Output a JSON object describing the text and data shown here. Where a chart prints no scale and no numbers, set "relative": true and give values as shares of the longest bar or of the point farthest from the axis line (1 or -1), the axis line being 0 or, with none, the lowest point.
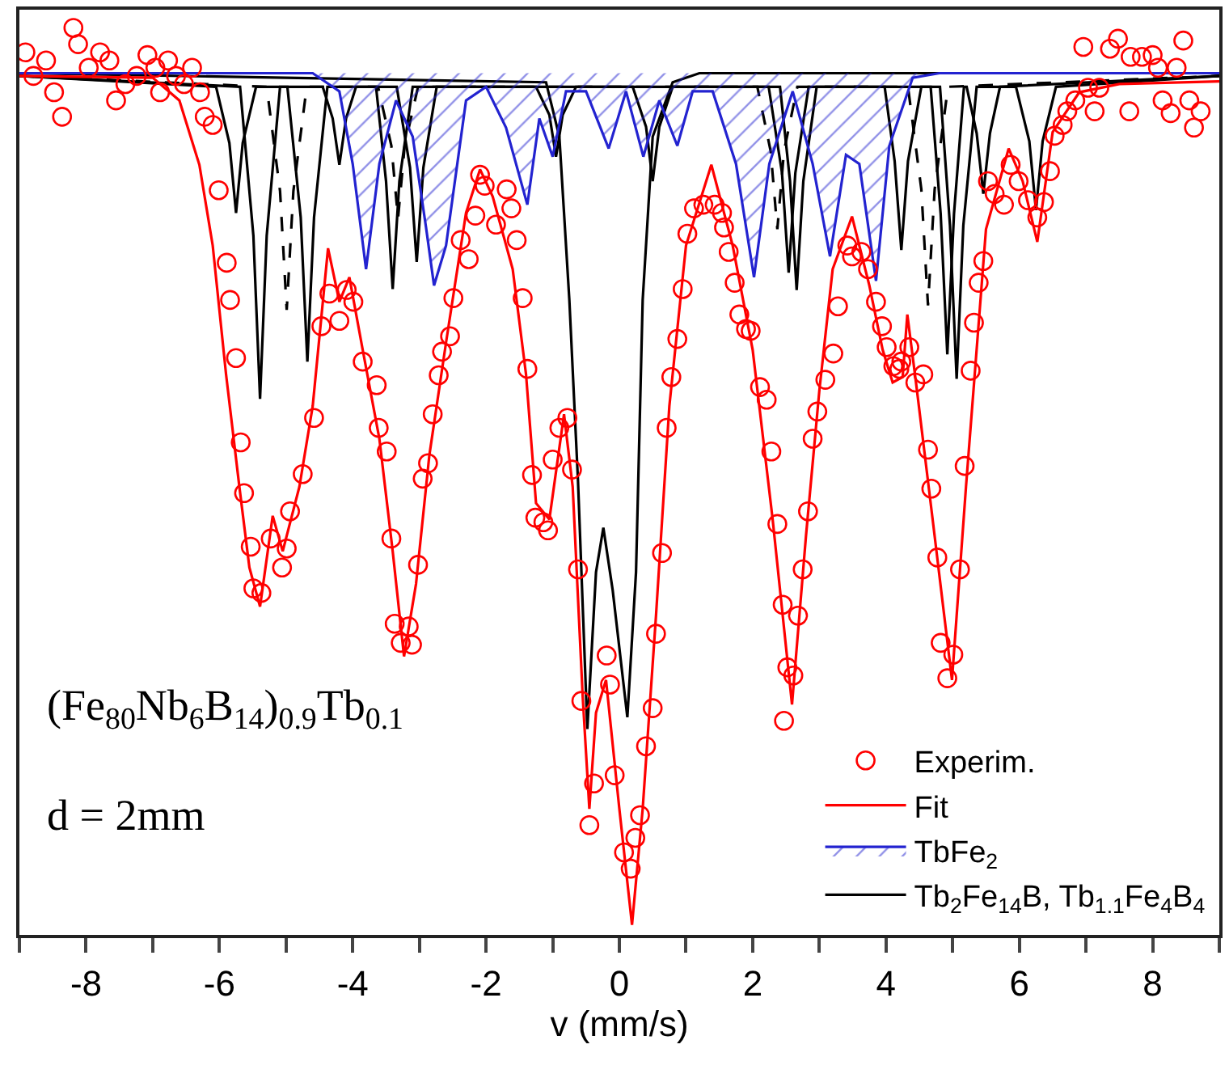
{
  "chart_data": {
    "type": "scatter",
    "relative": true,
    "xlabel": "v (mm/s)",
    "xlim": [
      -9,
      9
    ],
    "xticks": [
      {
        "value": -9,
        "label": null
      },
      -8,
      {
        "value": -7,
        "label": null
      },
      -6,
      {
        "value": -5,
        "label": null
      },
      -4,
      {
        "value": -3,
        "label": null
      },
      -2,
      {
        "value": -1,
        "label": null
      },
      0,
      {
        "value": 1,
        "label": null
      },
      2,
      {
        "value": 3,
        "label": null
      },
      4,
      {
        "value": 5,
        "label": null
      },
      6,
      {
        "value": 7,
        "label": null
      },
      8,
      {
        "value": 9,
        "label": null
      }
    ],
    "tick_labels": "x",
    "legend": "bottom right",
    "annotations": [
      "(Fe$_{80}$Nb$_{6}$B$_{14}$)$_{0.9}$Tb$_{0.1}$",
      "d = 2mm"
    ],
    "series": [
      {
        "name": "Experim.",
        "marker": "circle",
        "color": "#ff0000",
        "x": [
          -8.91,
          -8.79,
          -8.6,
          -8.48,
          -8.36,
          -8.19,
          -8.12,
          -7.96,
          -7.79,
          -7.65,
          -7.55,
          -7.41,
          -7.24,
          -7.08,
          -6.96,
          -6.89,
          -6.77,
          -6.65,
          -6.53,
          -6.41,
          -6.29,
          -6.22,
          -6.1,
          -6.01,
          -5.89,
          -5.84,
          -5.75,
          -5.68,
          -5.63,
          -5.53,
          -5.49,
          -5.37,
          -5.23,
          -5.06,
          -4.99,
          -4.94,
          -4.75,
          -4.58,
          -4.47,
          -4.35,
          -4.2,
          -4.09,
          -3.99,
          -3.85,
          -3.64,
          -3.61,
          -3.49,
          -3.42,
          -3.37,
          -3.28,
          -3.16,
          -3.11,
          -3.02,
          -2.95,
          -2.87,
          -2.8,
          -2.71,
          -2.66,
          -2.54,
          -2.49,
          -2.38,
          -2.26,
          -2.16,
          -2.09,
          -2.02,
          -1.85,
          -1.69,
          -1.62,
          -1.54,
          -1.45,
          -1.38,
          -1.31,
          -1.26,
          -1.14,
          -1.07,
          -1.0,
          -0.9,
          -0.78,
          -0.71,
          -0.62,
          -0.57,
          -0.45,
          -0.38,
          -0.19,
          -0.14,
          -0.07,
          0.07,
          0.17,
          0.24,
          0.31,
          0.4,
          0.5,
          0.55,
          0.64,
          0.71,
          0.78,
          0.87,
          0.95,
          1.02,
          1.12,
          1.26,
          1.43,
          1.54,
          1.57,
          1.64,
          1.73,
          1.8,
          1.9,
          1.97,
          2.11,
          2.21,
          2.28,
          2.37,
          2.45,
          2.47,
          2.52,
          2.61,
          2.68,
          2.75,
          2.83,
          2.9,
          2.97,
          3.09,
          3.21,
          3.28,
          3.42,
          3.49,
          3.63,
          3.73,
          3.85,
          3.94,
          4.01,
          4.11,
          4.2,
          4.23,
          4.35,
          4.44,
          4.56,
          4.63,
          4.68,
          4.77,
          4.82,
          4.92,
          5.01,
          5.11,
          5.18,
          5.27,
          5.32,
          5.39,
          5.46,
          5.53,
          5.63,
          5.77,
          5.87,
          5.99,
          6.13,
          6.27,
          6.37,
          6.46,
          6.53,
          6.65,
          6.72,
          6.84,
          6.96,
          7.03,
          7.13,
          7.2,
          7.36,
          7.48,
          7.65,
          7.67,
          7.84,
          8.0,
          8.08,
          8.15,
          8.27,
          8.36,
          8.46,
          8.55,
          8.62,
          8.72
        ],
        "values": [
          0.973,
          0.947,
          0.964,
          0.929,
          0.902,
          1.0,
          0.982,
          0.956,
          0.973,
          0.964,
          0.92,
          0.938,
          0.947,
          0.97,
          0.956,
          0.929,
          0.964,
          0.947,
          0.938,
          0.956,
          0.929,
          0.902,
          0.893,
          0.821,
          0.741,
          0.7,
          0.636,
          0.543,
          0.487,
          0.428,
          0.382,
          0.377,
          0.437,
          0.405,
          0.426,
          0.467,
          0.508,
          0.57,
          0.671,
          0.707,
          0.677,
          0.711,
          0.698,
          0.632,
          0.606,
          0.559,
          0.533,
          0.437,
          0.343,
          0.322,
          0.34,
          0.32,
          0.408,
          0.503,
          0.52,
          0.574,
          0.617,
          0.643,
          0.66,
          0.702,
          0.766,
          0.745,
          0.793,
          0.838,
          0.826,
          0.783,
          0.822,
          0.801,
          0.766,
          0.702,
          0.624,
          0.507,
          0.46,
          0.455,
          0.446,
          0.524,
          0.559,
          0.57,
          0.513,
          0.403,
          0.258,
          0.121,
          0.167,
          0.308,
          0.276,
          0.176,
          0.091,
          0.073,
          0.107,
          0.132,
          0.208,
          0.25,
          0.332,
          0.421,
          0.559,
          0.615,
          0.657,
          0.712,
          0.773,
          0.801,
          0.805,
          0.805,
          0.796,
          0.78,
          0.753,
          0.719,
          0.684,
          0.668,
          0.666,
          0.604,
          0.59,
          0.533,
          0.453,
          0.364,
          0.236,
          0.295,
          0.286,
          0.352,
          0.403,
          0.467,
          0.547,
          0.577,
          0.612,
          0.641,
          0.693,
          0.76,
          0.748,
          0.753,
          0.734,
          0.698,
          0.671,
          0.648,
          0.627,
          0.624,
          0.632,
          0.648,
          0.609,
          0.618,
          0.535,
          0.492,
          0.416,
          0.322,
          0.283,
          0.309,
          0.403,
          0.517,
          0.622,
          0.675,
          0.719,
          0.743,
          0.831,
          0.817,
          0.805,
          0.849,
          0.831,
          0.81,
          0.791,
          0.808,
          0.842,
          0.881,
          0.893,
          0.908,
          0.92,
          0.979,
          0.934,
          0.908,
          0.934,
          0.977,
          0.988,
          0.908,
          0.968,
          0.968,
          0.97,
          0.956,
          0.92,
          0.906,
          0.956,
          0.986,
          0.92,
          0.89,
          0.908
        ]
      },
      {
        "name": "Fit",
        "type": "line",
        "line_style": "solid",
        "color": "#ff0000",
        "x": [
          -9,
          -7.0,
          -6.6,
          -6.3,
          -6.1,
          -5.9,
          -5.7,
          -5.55,
          -5.39,
          -5.2,
          -5.05,
          -4.8,
          -4.6,
          -4.37,
          -4.2,
          -4.05,
          -3.85,
          -3.6,
          -3.4,
          -3.23,
          -3.05,
          -2.85,
          -2.6,
          -2.3,
          -2.09,
          -1.9,
          -1.6,
          -1.4,
          -1.25,
          -1.05,
          -0.83,
          -0.7,
          -0.55,
          -0.45,
          -0.35,
          -0.2,
          0.0,
          0.19,
          0.35,
          0.55,
          0.75,
          1.0,
          1.38,
          1.7,
          2.0,
          2.3,
          2.59,
          2.8,
          3.0,
          3.2,
          3.49,
          3.75,
          3.95,
          4.1,
          4.25,
          4.32,
          4.45,
          4.7,
          4.99,
          5.2,
          5.5,
          5.84,
          6.05,
          6.27,
          6.5,
          6.9,
          7.5,
          9.0
        ],
        "values": [
          0.947,
          0.945,
          0.92,
          0.849,
          0.76,
          0.618,
          0.494,
          0.405,
          0.362,
          0.462,
          0.423,
          0.494,
          0.583,
          0.757,
          0.698,
          0.725,
          0.645,
          0.547,
          0.423,
          0.307,
          0.387,
          0.529,
          0.653,
          0.796,
          0.844,
          0.814,
          0.734,
          0.618,
          0.476,
          0.458,
          0.574,
          0.494,
          0.263,
          0.139,
          0.245,
          0.281,
          0.139,
          0.011,
          0.139,
          0.352,
          0.583,
          0.76,
          0.849,
          0.76,
          0.645,
          0.458,
          0.254,
          0.44,
          0.6,
          0.734,
          0.792,
          0.716,
          0.645,
          0.609,
          0.615,
          0.684,
          0.609,
          0.458,
          0.281,
          0.494,
          0.778,
          0.867,
          0.831,
          0.764,
          0.885,
          0.929,
          0.938,
          0.941
        ]
      },
      {
        "name": "TbFe$_{2}$",
        "type": "area",
        "color": "#2323d0",
        "x": [
          -9,
          -4.6,
          -4.2,
          -4.0,
          -3.8,
          -3.6,
          -3.35,
          -3.1,
          -2.9,
          -2.78,
          -2.6,
          -2.3,
          -2.0,
          -1.7,
          -1.38,
          -1.2,
          -1.0,
          -0.8,
          -0.5,
          -0.16,
          0.1,
          0.36,
          0.6,
          0.87,
          1.1,
          1.4,
          1.75,
          2.02,
          2.25,
          2.6,
          2.9,
          3.16,
          3.4,
          3.6,
          3.85,
          4.05,
          4.4,
          4.8,
          9
        ],
        "values": [
          0.95,
          0.95,
          0.93,
          0.85,
          0.734,
          0.85,
          0.92,
          0.88,
          0.78,
          0.716,
          0.76,
          0.92,
          0.935,
          0.89,
          0.805,
          0.9,
          0.858,
          0.93,
          0.93,
          0.867,
          0.93,
          0.858,
          0.92,
          0.87,
          0.93,
          0.93,
          0.85,
          0.725,
          0.85,
          0.93,
          0.85,
          0.748,
          0.86,
          0.85,
          0.721,
          0.87,
          0.945,
          0.95,
          0.95
        ]
      },
      {
        "name": "Tb$_{2}$Fe$_{14}$B, Tb$_{1.1}$Fe$_{4}$B$_{4}$",
        "type": "line",
        "line_style": "solid",
        "color": "#000000",
        "x": [
          -9,
          -1.1,
          -0.9,
          -0.75,
          -0.62,
          -0.48,
          -0.35,
          -0.24,
          -0.1,
          0.12,
          0.25,
          0.35,
          0.5,
          0.8,
          1.2,
          9
        ],
        "values": [
          0.95,
          0.94,
          0.88,
          0.7,
          0.5,
          0.227,
          0.4,
          0.449,
          0.38,
          0.24,
          0.4,
          0.7,
          0.88,
          0.94,
          0.95,
          0.95
        ]
      },
      {
        "type": "line",
        "line_style": "solid",
        "color": "#000000",
        "x": [
          -9,
          -6.05,
          -5.85,
          -5.75,
          -5.65,
          -5.45,
          -4.98,
          -4.78,
          -4.68,
          -4.58,
          -4.38,
          -3.34,
          -3.14,
          -3.04,
          -2.94,
          -2.74,
          -1.25,
          -1.05,
          -0.95,
          -0.85,
          -0.65,
          2.24,
          2.44,
          2.54,
          2.64,
          2.84,
          4.67,
          4.82,
          4.92,
          5.02,
          5.17,
          5.21,
          5.36,
          5.46,
          5.56,
          5.71,
          9
        ],
        "values": [
          0.947,
          0.935,
          0.873,
          0.796,
          0.873,
          0.935,
          0.935,
          0.791,
          0.632,
          0.791,
          0.935,
          0.935,
          0.846,
          0.742,
          0.846,
          0.935,
          0.935,
          0.904,
          0.858,
          0.904,
          0.935,
          0.935,
          0.84,
          0.73,
          0.84,
          0.935,
          0.935,
          0.795,
          0.64,
          0.795,
          0.935,
          0.935,
          0.884,
          0.817,
          0.884,
          0.935,
          0.947
        ]
      },
      {
        "type": "line",
        "line_style": "solid",
        "color": "#000000",
        "x": [
          -9,
          -5.69,
          -5.49,
          -5.39,
          -5.29,
          -5.09,
          -4.45,
          -4.3,
          -4.2,
          -4.1,
          -3.95,
          -3.65,
          -3.5,
          -3.4,
          -3.3,
          -3.1,
          0.2,
          0.4,
          0.5,
          0.6,
          0.8,
          2.41,
          2.56,
          2.66,
          2.76,
          2.96,
          3.98,
          4.13,
          4.23,
          4.33,
          4.53,
          4.81,
          4.96,
          5.06,
          5.16,
          5.36,
          5.95,
          6.15,
          6.25,
          6.35,
          6.55,
          9
        ],
        "values": [
          0.947,
          0.935,
          0.771,
          0.591,
          0.771,
          0.935,
          0.935,
          0.9,
          0.849,
          0.9,
          0.935,
          0.935,
          0.831,
          0.712,
          0.831,
          0.935,
          0.935,
          0.891,
          0.831,
          0.891,
          0.935,
          0.935,
          0.831,
          0.711,
          0.831,
          0.935,
          0.935,
          0.853,
          0.755,
          0.853,
          0.935,
          0.935,
          0.782,
          0.613,
          0.782,
          0.935,
          0.935,
          0.875,
          0.799,
          0.875,
          0.935,
          0.947
        ]
      },
      {
        "type": "line",
        "line_style": "dashed",
        "color": "#000000",
        "x": [
          -9,
          -5.29,
          -5.09,
          -4.99,
          -4.89,
          -4.69,
          -3.62,
          -3.42,
          -3.32,
          -3.22,
          -3.02,
          2.07,
          2.27,
          2.37,
          2.47,
          2.67,
          4.33,
          4.53,
          4.63,
          4.73,
          4.93,
          9
        ],
        "values": [
          0.947,
          0.935,
          0.82,
          0.689,
          0.82,
          0.935,
          0.935,
          0.87,
          0.79,
          0.87,
          0.935,
          0.935,
          0.864,
          0.778,
          0.864,
          0.935,
          0.935,
          0.822,
          0.694,
          0.822,
          0.935,
          0.947
        ]
      }
    ]
  }
}
